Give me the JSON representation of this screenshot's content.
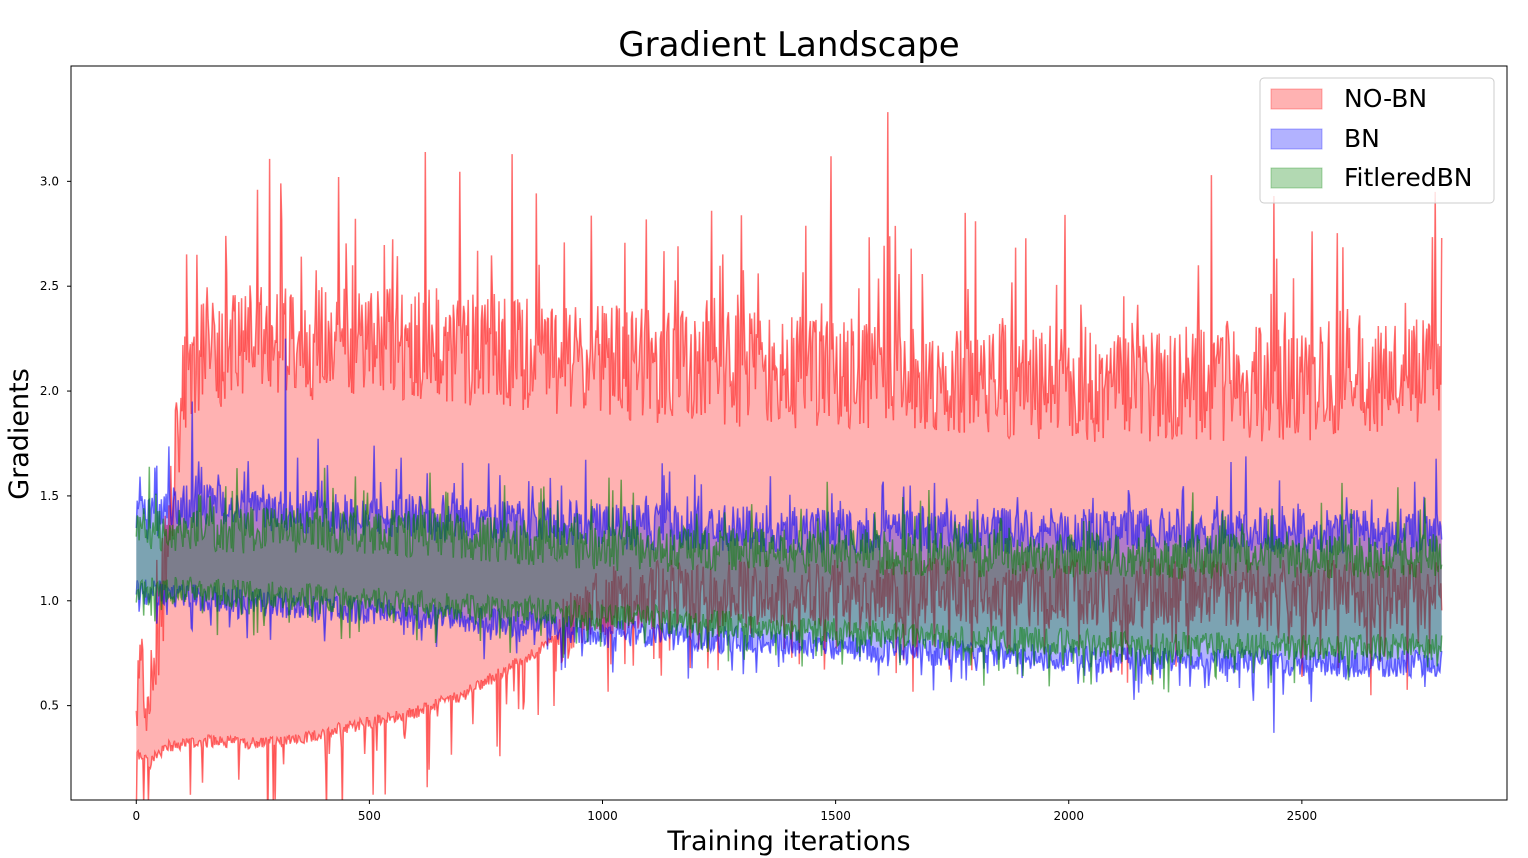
{
  "chart_data": {
    "type": "area",
    "title": "Gradient Landscape",
    "xlabel": "Training iterations",
    "ylabel": "Gradients",
    "xlim": [
      -140,
      2940
    ],
    "ylim": [
      0.05,
      3.55
    ],
    "xticks": [
      0,
      500,
      1000,
      1500,
      2000,
      2500
    ],
    "yticks": [
      0.5,
      1.0,
      1.5,
      2.0,
      2.5,
      3.0
    ],
    "grid": false,
    "legend_position": "top-right",
    "iterations": 2800,
    "series": [
      {
        "name": "NO-BN",
        "color": "#ff0000",
        "band_min_keypoints": [
          [
            0,
            0.27
          ],
          [
            30,
            0.23
          ],
          [
            60,
            0.3
          ],
          [
            150,
            0.33
          ],
          [
            300,
            0.32
          ],
          [
            400,
            0.37
          ],
          [
            500,
            0.42
          ],
          [
            600,
            0.47
          ],
          [
            700,
            0.55
          ],
          [
            800,
            0.68
          ],
          [
            900,
            0.82
          ],
          [
            1000,
            1.0
          ],
          [
            1100,
            1.03
          ],
          [
            1500,
            1.04
          ],
          [
            2000,
            1.04
          ],
          [
            2500,
            1.03
          ],
          [
            2800,
            1.03
          ]
        ],
        "band_max_keypoints": [
          [
            0,
            0.5
          ],
          [
            40,
            0.52
          ],
          [
            60,
            1.05
          ],
          [
            100,
            1.9
          ],
          [
            150,
            2.1
          ],
          [
            300,
            2.15
          ],
          [
            600,
            2.15
          ],
          [
            1000,
            2.05
          ],
          [
            1500,
            2.0
          ],
          [
            2000,
            1.95
          ],
          [
            2500,
            1.95
          ],
          [
            2800,
            2.0
          ]
        ],
        "peaks": [
          [
            130,
            2.65
          ],
          [
            260,
            2.96
          ],
          [
            310,
            2.99
          ],
          [
            620,
            3.14
          ],
          [
            805,
            3.13
          ],
          [
            1490,
            3.12
          ],
          [
            1612,
            3.33
          ],
          [
            1800,
            2.81
          ],
          [
            2305,
            3.03
          ],
          [
            2440,
            2.93
          ],
          [
            2800,
            2.73
          ]
        ]
      },
      {
        "name": "BN",
        "color": "#0000ff",
        "band_min_keypoints": [
          [
            0,
            1.05
          ],
          [
            100,
            1.02
          ],
          [
            500,
            0.95
          ],
          [
            1000,
            0.85
          ],
          [
            1500,
            0.78
          ],
          [
            2000,
            0.72
          ],
          [
            2500,
            0.7
          ],
          [
            2800,
            0.7
          ]
        ],
        "band_max_keypoints": [
          [
            0,
            1.35
          ],
          [
            100,
            1.42
          ],
          [
            500,
            1.38
          ],
          [
            1000,
            1.32
          ],
          [
            1500,
            1.3
          ],
          [
            2000,
            1.3
          ],
          [
            2500,
            1.3
          ],
          [
            2800,
            1.3
          ]
        ],
        "peaks": [
          [
            120,
            1.95
          ],
          [
            320,
            2.25
          ],
          [
            2440,
            0.37
          ]
        ]
      },
      {
        "name": "FitleredBN",
        "color": "#008000",
        "band_min_keypoints": [
          [
            0,
            1.05
          ],
          [
            100,
            1.05
          ],
          [
            500,
            1.0
          ],
          [
            1000,
            0.93
          ],
          [
            1500,
            0.85
          ],
          [
            2000,
            0.8
          ],
          [
            2500,
            0.78
          ],
          [
            2800,
            0.78
          ]
        ],
        "band_max_keypoints": [
          [
            0,
            1.3
          ],
          [
            100,
            1.3
          ],
          [
            500,
            1.3
          ],
          [
            1000,
            1.22
          ],
          [
            1500,
            1.2
          ],
          [
            2000,
            1.18
          ],
          [
            2500,
            1.18
          ],
          [
            2800,
            1.18
          ]
        ],
        "peaks": []
      }
    ]
  }
}
